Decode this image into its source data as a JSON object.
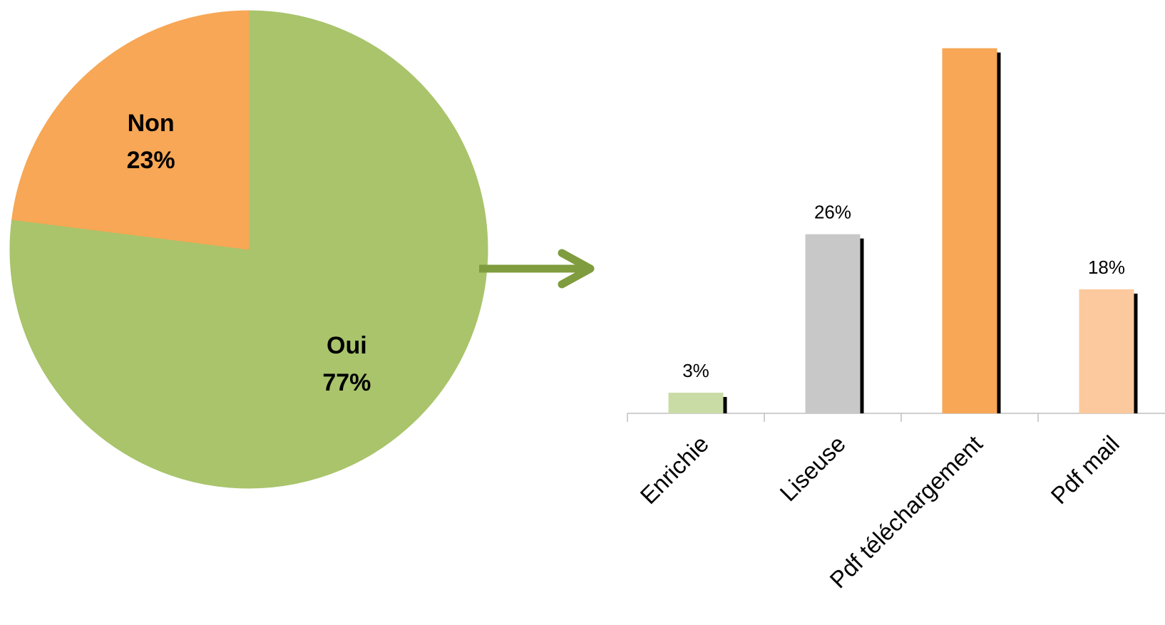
{
  "chart_data": [
    {
      "type": "pie",
      "slices": [
        {
          "label": "Oui",
          "value": 77,
          "display": "77%",
          "color": "#a9c46b"
        },
        {
          "label": "Non",
          "value": 23,
          "display": "23%",
          "color": "#f7a755"
        }
      ]
    },
    {
      "type": "bar",
      "categories": [
        "Enrichie",
        "Liseuse",
        "Pdf téléchargement",
        "Pdf mail"
      ],
      "values": [
        3,
        26,
        53,
        18
      ],
      "data_labels": [
        "3%",
        "26%",
        "",
        "18%"
      ],
      "colors": [
        "#c9dca6",
        "#c8c8c8",
        "#f7a755",
        "#fbc99d"
      ],
      "ylim": [
        0,
        60
      ],
      "grid": false,
      "legend": "none"
    }
  ],
  "arrow": {
    "color": "#7f9c3e"
  }
}
